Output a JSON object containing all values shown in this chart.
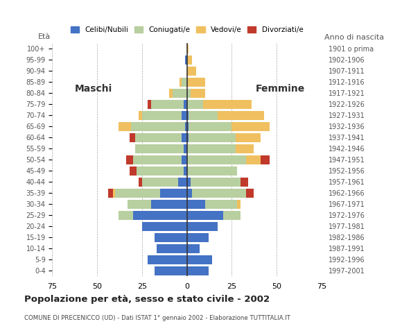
{
  "age_groups": [
    "0-4",
    "5-9",
    "10-14",
    "15-19",
    "20-24",
    "25-29",
    "30-34",
    "35-39",
    "40-44",
    "45-49",
    "50-54",
    "55-59",
    "60-64",
    "65-69",
    "70-74",
    "75-79",
    "80-84",
    "85-89",
    "90-94",
    "95-99",
    "100+"
  ],
  "birth_years": [
    "1997-2001",
    "1992-1996",
    "1987-1991",
    "1982-1986",
    "1977-1981",
    "1972-1976",
    "1967-1971",
    "1962-1966",
    "1957-1961",
    "1952-1956",
    "1947-1951",
    "1942-1946",
    "1937-1941",
    "1932-1936",
    "1927-1931",
    "1922-1926",
    "1917-1921",
    "1912-1916",
    "1907-1911",
    "1902-1906",
    "1901 o prima"
  ],
  "males": {
    "celibi": [
      18,
      22,
      17,
      18,
      25,
      30,
      20,
      15,
      5,
      2,
      3,
      2,
      3,
      1,
      3,
      2,
      0,
      0,
      0,
      1,
      0
    ],
    "coniugati": [
      0,
      0,
      0,
      0,
      0,
      8,
      13,
      25,
      20,
      26,
      27,
      27,
      26,
      30,
      22,
      18,
      8,
      3,
      0,
      0,
      0
    ],
    "vedovi": [
      0,
      0,
      0,
      0,
      0,
      0,
      0,
      1,
      0,
      0,
      0,
      0,
      0,
      7,
      2,
      0,
      2,
      1,
      0,
      0,
      0
    ],
    "divorziati": [
      0,
      0,
      0,
      0,
      0,
      0,
      0,
      3,
      2,
      4,
      4,
      0,
      3,
      0,
      0,
      2,
      0,
      0,
      0,
      0,
      0
    ]
  },
  "females": {
    "nubili": [
      12,
      14,
      7,
      12,
      17,
      20,
      10,
      3,
      2,
      0,
      0,
      0,
      1,
      1,
      1,
      0,
      0,
      0,
      0,
      0,
      0
    ],
    "coniugate": [
      0,
      0,
      0,
      0,
      0,
      10,
      18,
      30,
      28,
      28,
      33,
      27,
      26,
      24,
      16,
      9,
      2,
      0,
      0,
      0,
      0
    ],
    "vedove": [
      0,
      0,
      0,
      0,
      0,
      0,
      2,
      0,
      0,
      0,
      8,
      10,
      14,
      21,
      26,
      27,
      8,
      10,
      5,
      3,
      1
    ],
    "divorziate": [
      0,
      0,
      0,
      0,
      0,
      0,
      0,
      4,
      4,
      0,
      5,
      0,
      0,
      0,
      0,
      0,
      0,
      0,
      0,
      0,
      0
    ]
  },
  "colors": {
    "celibi": "#4472c4",
    "coniugati": "#b8cfa0",
    "vedovi": "#f0c060",
    "divorziati": "#c0392b"
  },
  "title": "Popolazione per età, sesso e stato civile - 2002",
  "subtitle": "COMUNE DI PRECENICCO (UD) - Dati ISTAT 1° gennaio 2002 - Elaborazione TUTTITALIA.IT",
  "xlim": 75,
  "xlabel_left": "Maschi",
  "xlabel_right": "Femmine",
  "ylabel": "Età",
  "ylabel_right": "Anno di nascita",
  "legend_labels": [
    "Celibi/Nubili",
    "Coniugati/e",
    "Vedovi/e",
    "Divorziati/e"
  ],
  "background_color": "#ffffff",
  "grid_color": "#aaaaaa"
}
